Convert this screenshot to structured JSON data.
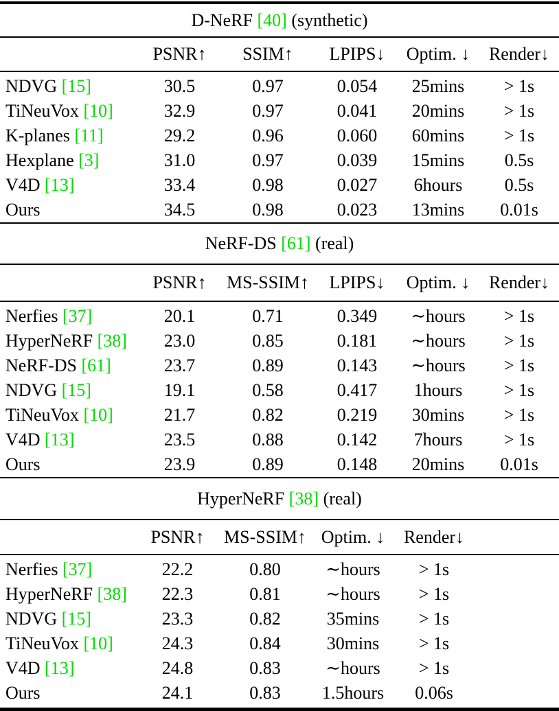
{
  "page": {
    "background": "#ffffff",
    "text_color": "#000000",
    "cite_color": "#00dd00"
  },
  "tables": [
    {
      "title": {
        "prefix": "D-NeRF ",
        "cite": "[40]",
        "suffix": " (synthetic)"
      },
      "columns": [
        "PSNR↑",
        "SSIM↑",
        "LPIPS↓",
        "Optim. ↓",
        "Render↓"
      ],
      "rows": [
        {
          "method": "NDVG",
          "cite": "[15]",
          "values": [
            "30.5",
            "0.97",
            "0.054",
            "25mins",
            "> 1s"
          ]
        },
        {
          "method": "TiNeuVox",
          "cite": "[10]",
          "values": [
            "32.9",
            "0.97",
            "0.041",
            "20mins",
            "> 1s"
          ]
        },
        {
          "method": "K-planes",
          "cite": "[11]",
          "values": [
            "29.2",
            "0.96",
            "0.060",
            "60mins",
            "> 1s"
          ]
        },
        {
          "method": "Hexplane",
          "cite": "[3]",
          "values": [
            "31.0",
            "0.97",
            "0.039",
            "15mins",
            "0.5s"
          ]
        },
        {
          "method": "V4D",
          "cite": "[13]",
          "values": [
            "33.4",
            "0.98",
            "0.027",
            "6hours",
            "0.5s"
          ]
        },
        {
          "method": "Ours",
          "cite": "",
          "values": [
            "34.5",
            "0.98",
            "0.023",
            "13mins",
            "0.01s"
          ]
        }
      ]
    },
    {
      "title": {
        "prefix": "NeRF-DS ",
        "cite": "[61]",
        "suffix": " (real)"
      },
      "columns": [
        "PSNR↑",
        "MS-SSIM↑",
        "LPIPS↓",
        "Optim. ↓",
        "Render↓"
      ],
      "rows": [
        {
          "method": "Nerfies",
          "cite": "[37]",
          "values": [
            "20.1",
            "0.71",
            "0.349",
            "∼hours",
            "> 1s"
          ]
        },
        {
          "method": "HyperNeRF",
          "cite": "[38]",
          "values": [
            "23.0",
            "0.85",
            "0.181",
            "∼hours",
            "> 1s"
          ]
        },
        {
          "method": "NeRF-DS",
          "cite": "[61]",
          "values": [
            "23.7",
            "0.89",
            "0.143",
            "∼hours",
            "> 1s"
          ]
        },
        {
          "method": "NDVG",
          "cite": "[15]",
          "values": [
            "19.1",
            "0.58",
            "0.417",
            "1hours",
            "> 1s"
          ]
        },
        {
          "method": "TiNeuVox",
          "cite": "[10]",
          "values": [
            "21.7",
            "0.82",
            "0.219",
            "30mins",
            "> 1s"
          ]
        },
        {
          "method": "V4D",
          "cite": "[13]",
          "values": [
            "23.5",
            "0.88",
            "0.142",
            "7hours",
            "> 1s"
          ]
        },
        {
          "method": "Ours",
          "cite": "",
          "values": [
            "23.9",
            "0.89",
            "0.148",
            "20mins",
            "0.01s"
          ]
        }
      ]
    },
    {
      "title": {
        "prefix": "HyperNeRF ",
        "cite": "[38]",
        "suffix": " (real)"
      },
      "columns": [
        "PSNR↑",
        "MS-SSIM↑",
        "Optim. ↓",
        "Render↓"
      ],
      "rows": [
        {
          "method": "Nerfies",
          "cite": "[37]",
          "values": [
            "22.2",
            "0.80",
            "∼hours",
            "> 1s"
          ]
        },
        {
          "method": "HyperNeRF",
          "cite": "[38]",
          "values": [
            "22.3",
            "0.81",
            "∼hours",
            "> 1s"
          ]
        },
        {
          "method": "NDVG",
          "cite": "[15]",
          "values": [
            "23.3",
            "0.82",
            "35mins",
            "> 1s"
          ]
        },
        {
          "method": "TiNeuVox",
          "cite": "[10]",
          "values": [
            "24.3",
            "0.84",
            "30mins",
            "> 1s"
          ]
        },
        {
          "method": "V4D",
          "cite": "[13]",
          "values": [
            "24.8",
            "0.83",
            "∼hours",
            "> 1s"
          ]
        },
        {
          "method": "Ours",
          "cite": "",
          "values": [
            "24.1",
            "0.83",
            "1.5hours",
            "0.06s"
          ]
        }
      ]
    }
  ]
}
